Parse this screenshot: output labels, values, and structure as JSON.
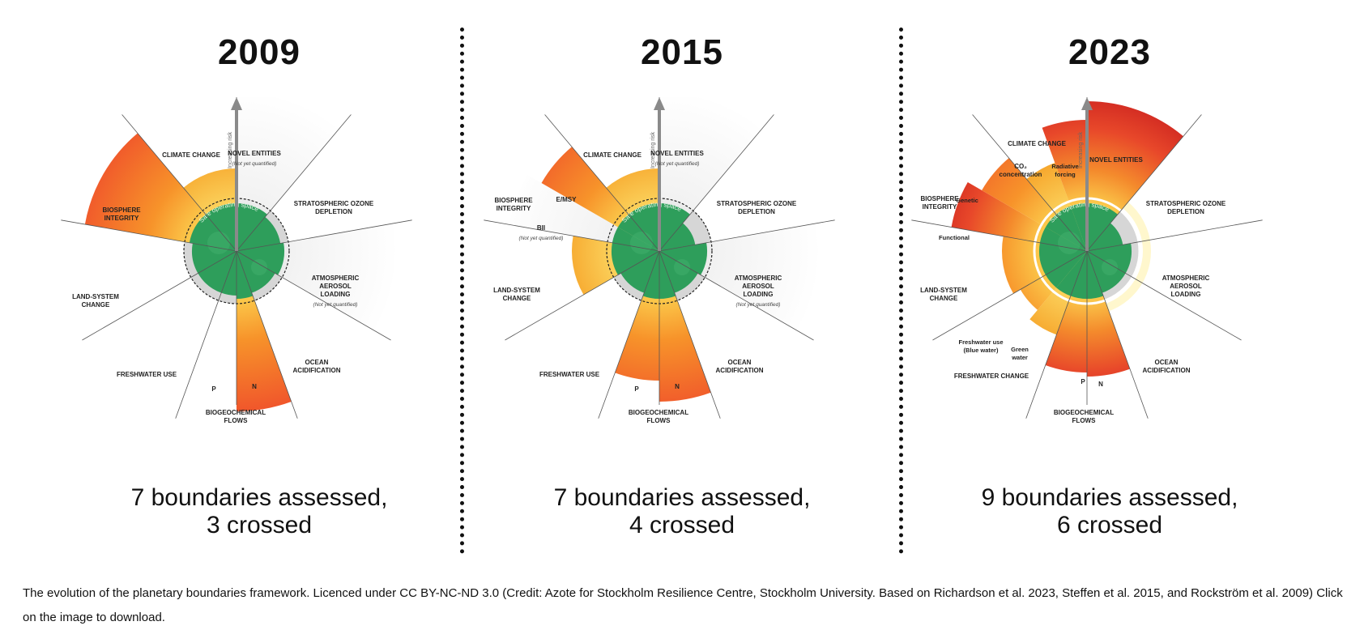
{
  "panels": [
    {
      "year": "2009",
      "summary_line1": "7 boundaries assessed,",
      "summary_line2": "3 crossed",
      "risk_label": "Increasing risk",
      "safe_label": "Safe operating space",
      "labels": [
        {
          "lines": [
            "CLIMATE CHANGE"
          ]
        },
        {
          "lines": [
            "NOVEL ENTITIES"
          ],
          "note": "(Not yet quantified)"
        },
        {
          "lines": [
            "STRATOSPHERIC OZONE",
            "DEPLETION"
          ]
        },
        {
          "lines": [
            "ATMOSPHERIC",
            "AEROSOL",
            "LOADING"
          ],
          "note": "(Not yet quantified)"
        },
        {
          "lines": [
            "OCEAN",
            "ACIDIFICATION"
          ]
        },
        {
          "lines": [
            "BIOGEOCHEMICAL",
            "FLOWS"
          ]
        },
        {
          "lines": [
            "N"
          ]
        },
        {
          "lines": [
            "P"
          ]
        },
        {
          "lines": [
            "FRESHWATER USE"
          ]
        },
        {
          "lines": [
            "LAND-SYSTEM",
            "CHANGE"
          ]
        },
        {
          "lines": [
            "BIOSPHERE",
            "INTEGRITY"
          ]
        }
      ]
    },
    {
      "year": "2015",
      "summary_line1": "7 boundaries assessed,",
      "summary_line2": "4 crossed",
      "risk_label": "Increasing risk",
      "safe_label": "Safe operating space",
      "labels": [
        {
          "lines": [
            "CLIMATE CHANGE"
          ]
        },
        {
          "lines": [
            "NOVEL ENTITIES"
          ],
          "note": "(Not yet quantified)"
        },
        {
          "lines": [
            "STRATOSPHERIC OZONE",
            "DEPLETION"
          ]
        },
        {
          "lines": [
            "ATMOSPHERIC",
            "AEROSOL",
            "LOADING"
          ],
          "note": "(Not yet quantified)"
        },
        {
          "lines": [
            "OCEAN",
            "ACIDIFICATION"
          ]
        },
        {
          "lines": [
            "BIOGEOCHEMICAL",
            "FLOWS"
          ]
        },
        {
          "lines": [
            "N"
          ]
        },
        {
          "lines": [
            "P"
          ]
        },
        {
          "lines": [
            "FRESHWATER USE"
          ]
        },
        {
          "lines": [
            "LAND-SYSTEM",
            "CHANGE"
          ]
        },
        {
          "lines": [
            "BII"
          ],
          "note": "(Not yet quantified)"
        },
        {
          "lines": [
            "BIOSPHERE",
            "INTEGRITY"
          ]
        },
        {
          "lines": [
            "E/MSY"
          ]
        }
      ]
    },
    {
      "year": "2023",
      "summary_line1": "9 boundaries assessed,",
      "summary_line2": "6 crossed",
      "risk_label": "Increasing risk",
      "safe_label": "Safe operating space",
      "labels": [
        {
          "lines": [
            "CLIMATE CHANGE"
          ]
        },
        {
          "lines": [
            "CO₂",
            "concentration"
          ]
        },
        {
          "lines": [
            "Radiative",
            "forcing"
          ]
        },
        {
          "lines": [
            "NOVEL ENTITIES"
          ]
        },
        {
          "lines": [
            "STRATOSPHERIC OZONE",
            "DEPLETION"
          ]
        },
        {
          "lines": [
            "ATMOSPHERIC",
            "AEROSOL",
            "LOADING"
          ]
        },
        {
          "lines": [
            "OCEAN",
            "ACIDIFICATION"
          ]
        },
        {
          "lines": [
            "BIOGEOCHEMICAL",
            "FLOWS"
          ]
        },
        {
          "lines": [
            "N"
          ]
        },
        {
          "lines": [
            "P"
          ]
        },
        {
          "lines": [
            "FRESHWATER CHANGE"
          ]
        },
        {
          "lines": [
            "Green",
            "water"
          ]
        },
        {
          "lines": [
            "Freshwater use",
            "(Blue water)"
          ]
        },
        {
          "lines": [
            "LAND-SYSTEM",
            "CHANGE"
          ]
        },
        {
          "lines": [
            "BIOSPHERE",
            "INTEGRITY"
          ]
        },
        {
          "lines": [
            "Genetic"
          ]
        },
        {
          "lines": [
            "Functional"
          ]
        }
      ]
    }
  ],
  "caption": "The evolution of the planetary boundaries framework. Licenced under CC BY-NC-ND 3.0 (Credit: Azote for Stockholm Resilience Centre, Stockholm University. Based on Richardson et al. 2023, Steffen et al. 2015, and Rockström et al. 2009) Click on the image to download."
}
